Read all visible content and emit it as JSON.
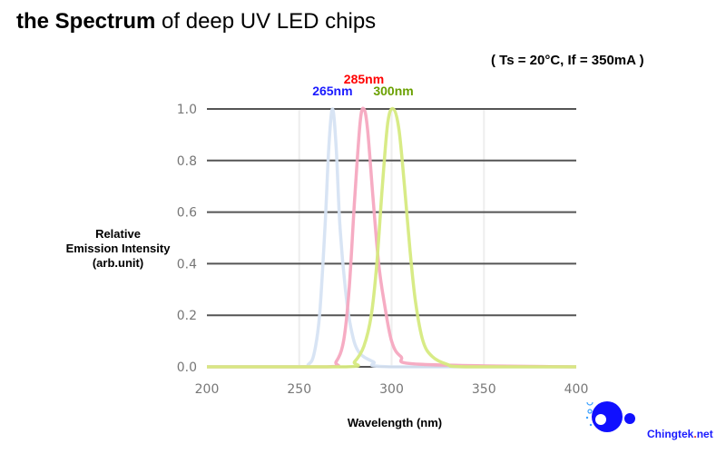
{
  "title": {
    "bold": "the Spectrum",
    "rest": " of deep UV LED chips"
  },
  "conditions": "( Ts = 20°C, If = 350mA )",
  "brand": {
    "name": "Chingtek",
    "dot": ".",
    "tld": "net",
    "color": "#1a1aff"
  },
  "chart_data": {
    "type": "line",
    "title": "the Spectrum of deep UV LED chips",
    "xlabel": "Wavelength (nm)",
    "ylabel": [
      "Relative",
      "Emission Intensity",
      "(arb.unit)"
    ],
    "xlim": [
      200,
      400
    ],
    "ylim": [
      0,
      1.0
    ],
    "xticks": [
      200,
      250,
      300,
      350,
      400
    ],
    "xtick_labels": [
      "200",
      "250",
      "300",
      "350",
      "400"
    ],
    "yticks": [
      0,
      0.2,
      0.4,
      0.6,
      0.8,
      1.0
    ],
    "ytick_labels": [
      "0.0",
      "0.2",
      "0.4",
      "0.6",
      "0.8",
      "1.0"
    ],
    "grid": "horizontal",
    "series": [
      {
        "name": "265nm",
        "color": "#d6e3f3",
        "label_color": "#1a1aff",
        "x": [
          200,
          250,
          255,
          258,
          261,
          264,
          266,
          268,
          270,
          272,
          275,
          278,
          282,
          290,
          300,
          400
        ],
        "y": [
          0,
          0,
          0.01,
          0.05,
          0.2,
          0.55,
          0.85,
          1.0,
          0.85,
          0.55,
          0.3,
          0.15,
          0.06,
          0.02,
          0,
          0
        ]
      },
      {
        "name": "285nm",
        "color": "#f6a8c0",
        "label_color": "#ff0000",
        "x": [
          200,
          265,
          270,
          274,
          277,
          280,
          283,
          285,
          287,
          290,
          293,
          296,
          300,
          305,
          315,
          400
        ],
        "y": [
          0,
          0,
          0.02,
          0.1,
          0.3,
          0.65,
          0.95,
          1.0,
          0.92,
          0.65,
          0.4,
          0.25,
          0.1,
          0.04,
          0.01,
          0
        ]
      },
      {
        "name": "300nm",
        "color": "#d6ea80",
        "label_color": "#6aa000",
        "x": [
          200,
          275,
          280,
          285,
          289,
          292,
          295,
          298,
          301,
          304,
          307,
          310,
          313,
          317,
          322,
          330,
          340,
          400
        ],
        "y": [
          0,
          0,
          0.02,
          0.08,
          0.2,
          0.4,
          0.7,
          0.95,
          1.0,
          0.92,
          0.7,
          0.45,
          0.25,
          0.1,
          0.04,
          0.01,
          0,
          0
        ]
      }
    ]
  }
}
